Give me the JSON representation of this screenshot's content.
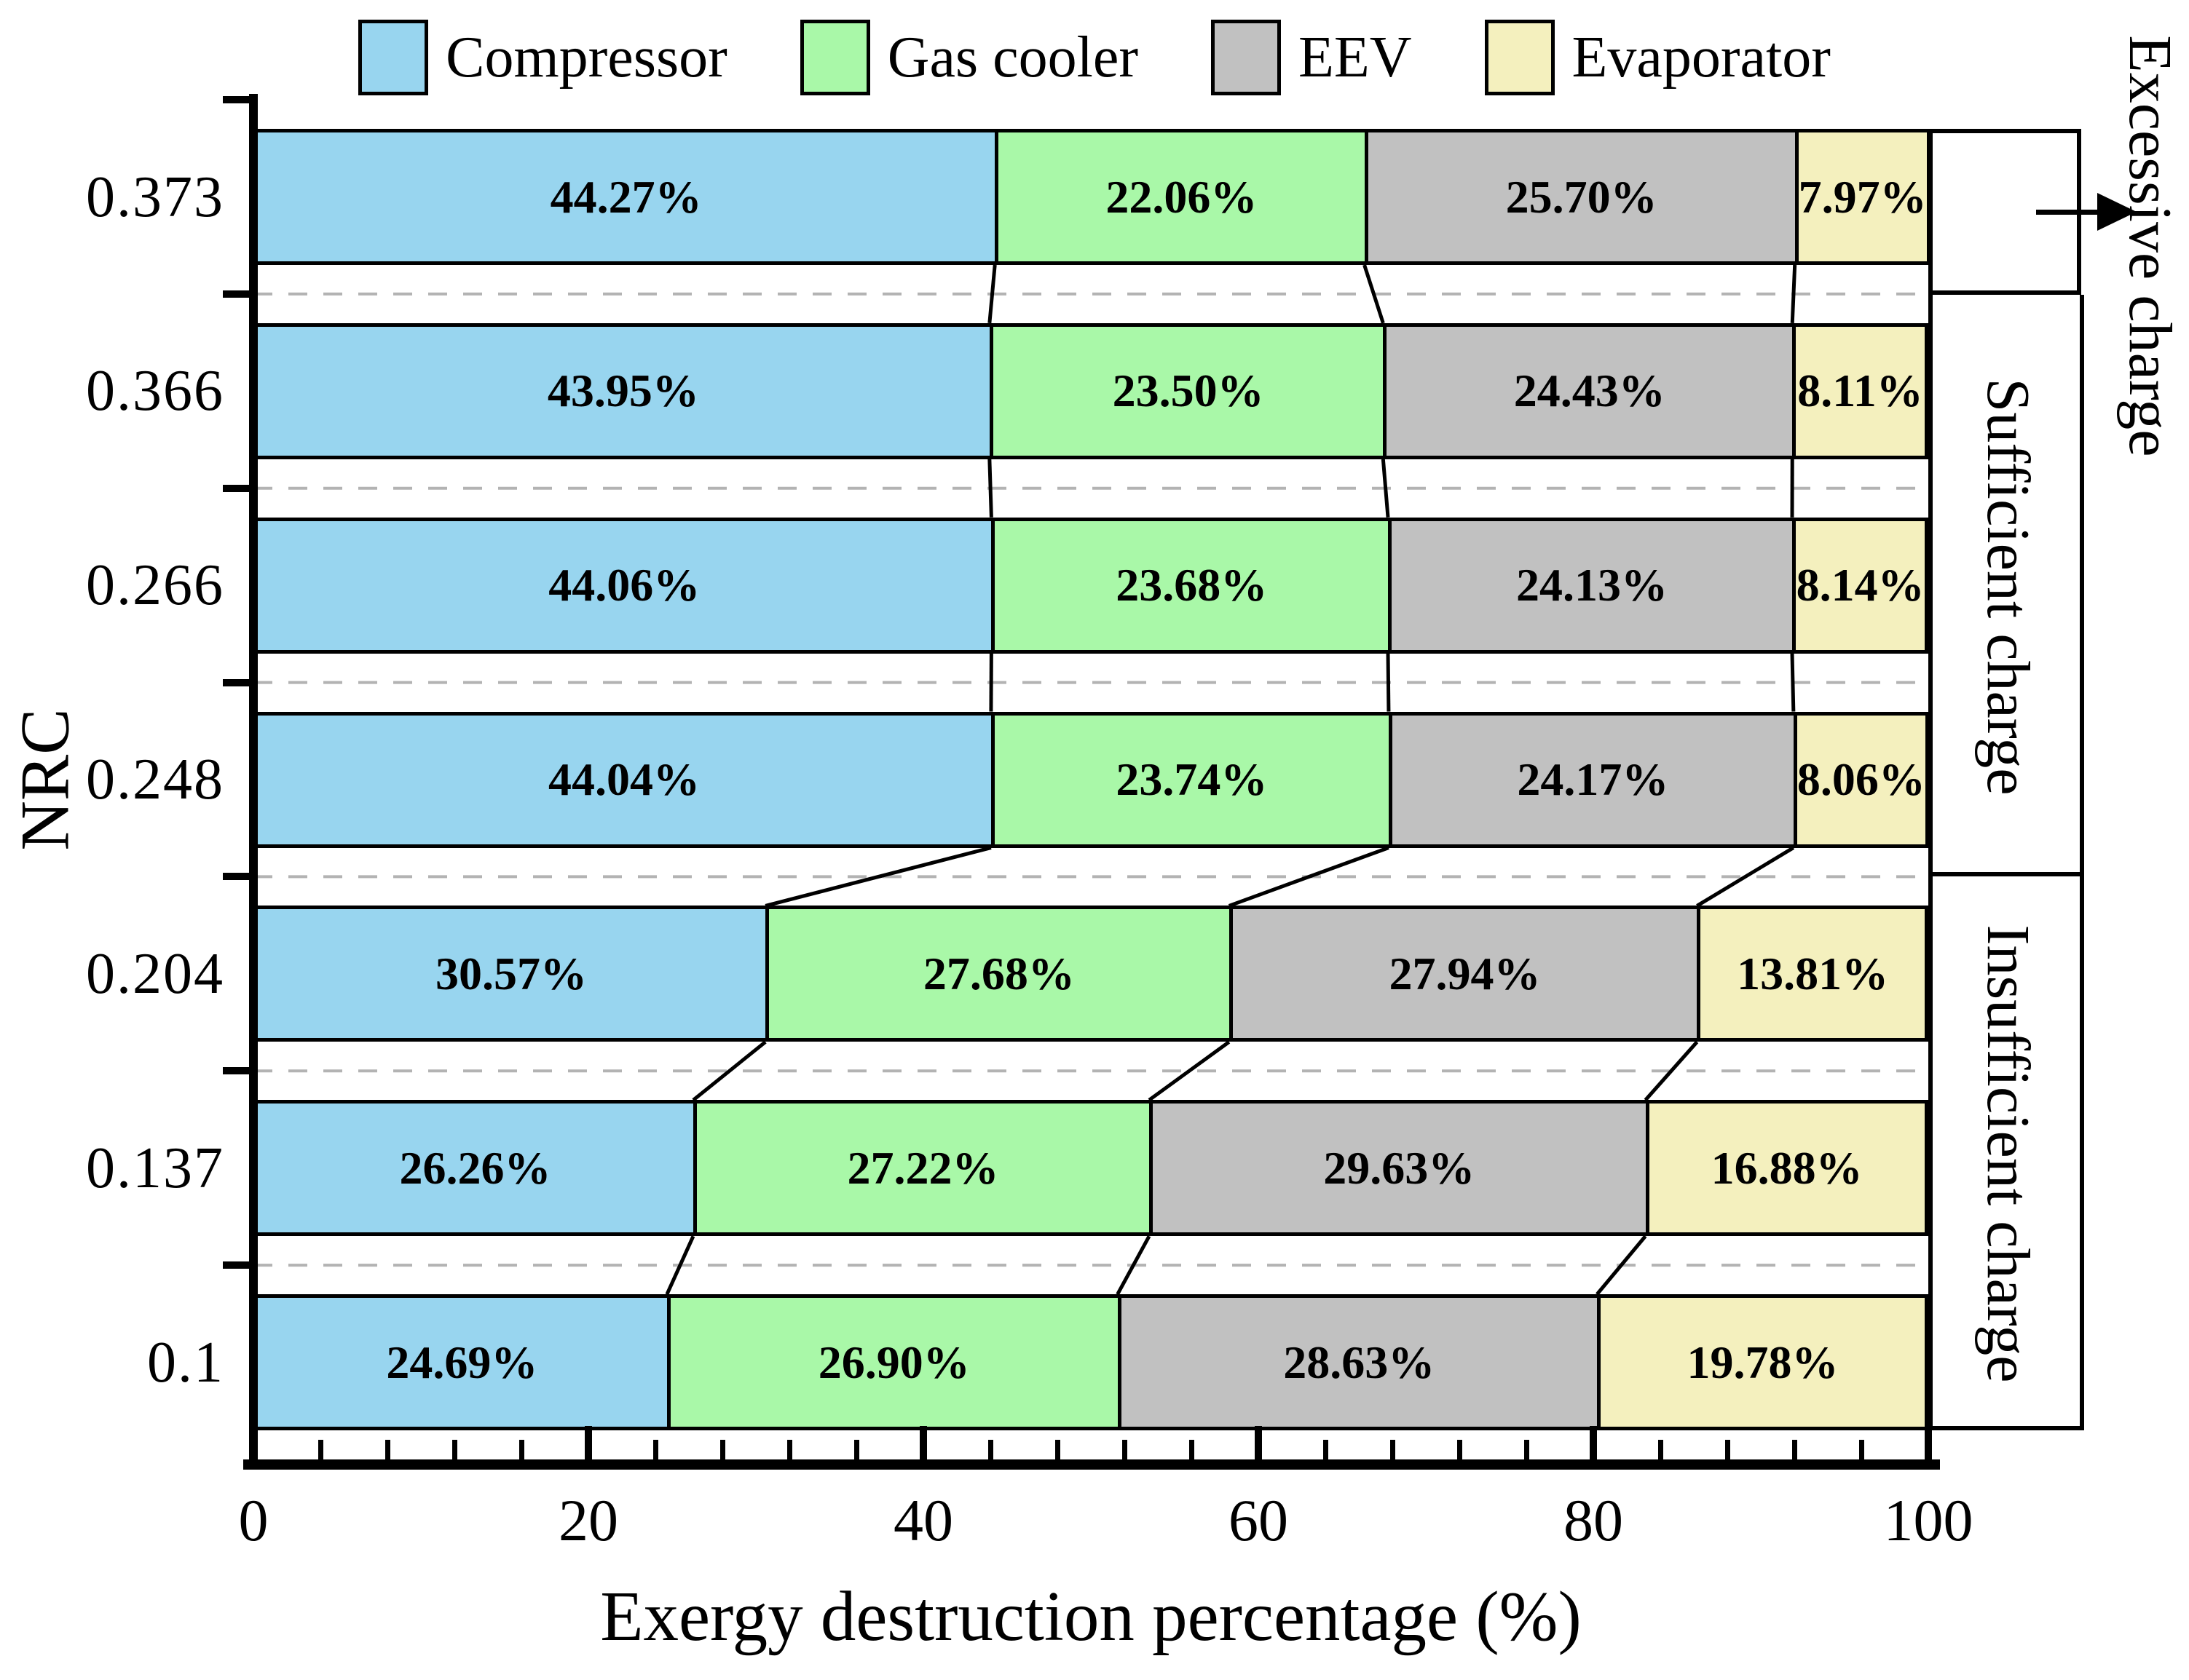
{
  "axes": {
    "x": {
      "label": "Exergy destruction percentage (%)",
      "tick_labels": [
        "0",
        "20",
        "40",
        "60",
        "80",
        "100"
      ],
      "range": [
        0,
        100
      ],
      "minor_tick_step": 4
    },
    "y": {
      "label": "NRC"
    }
  },
  "annotations": {
    "excessive": {
      "label": "Excessive charge"
    },
    "sufficient": {
      "label": "Sufficient charge"
    },
    "insufficient": {
      "label": "Insufficient charge"
    }
  },
  "style": {
    "background": "#FFFFFF",
    "bar_border": "#000000",
    "grid_line": "#B3B3B3",
    "text": "#000000"
  },
  "chart_data": {
    "type": "bar",
    "orientation": "horizontal",
    "stacked": true,
    "title": "",
    "xlabel": "Exergy destruction percentage (%)",
    "ylabel": "NRC",
    "xlim": [
      0,
      100
    ],
    "x_major_ticks": [
      0,
      20,
      40,
      60,
      80,
      100
    ],
    "x_minor_tick_step": 4,
    "grid": "dashed horizontal separator lines between category rows",
    "legend_position": "top",
    "categories": [
      "0.373",
      "0.366",
      "0.266",
      "0.248",
      "0.204",
      "0.137",
      "0.1"
    ],
    "series": [
      {
        "name": "Compressor",
        "color": "#98D5EF",
        "values": [
          44.27,
          43.95,
          44.06,
          44.04,
          30.57,
          26.26,
          24.69
        ],
        "value_labels": [
          "44.27%",
          "43.95%",
          "44.06%",
          "44.04%",
          "30.57%",
          "26.26%",
          "24.69%"
        ]
      },
      {
        "name": "Gas cooler",
        "color": "#A9F8A8",
        "values": [
          22.06,
          23.5,
          23.68,
          23.74,
          27.68,
          27.22,
          26.9
        ],
        "value_labels": [
          "22.06%",
          "23.50%",
          "23.68%",
          "23.74%",
          "27.68%",
          "27.22%",
          "26.90%"
        ]
      },
      {
        "name": "EEV",
        "color": "#C1C1C1",
        "values": [
          25.7,
          24.43,
          24.13,
          24.17,
          27.94,
          29.63,
          28.63
        ],
        "value_labels": [
          "25.70%",
          "24.43%",
          "24.13%",
          "24.17%",
          "27.94%",
          "29.63%",
          "28.63%"
        ]
      },
      {
        "name": "Evaporator",
        "color": "#F4F0BE",
        "values": [
          7.97,
          8.11,
          8.14,
          8.06,
          13.81,
          16.88,
          19.78
        ],
        "value_labels": [
          "7.97%",
          "8.11%",
          "8.14%",
          "8.06%",
          "13.81%",
          "16.88%",
          "19.78%"
        ]
      }
    ],
    "row_groups": [
      {
        "label": "Excessive charge",
        "rows": [
          0
        ]
      },
      {
        "label": "Sufficient charge",
        "rows": [
          1,
          2,
          3
        ]
      },
      {
        "label": "Insufficient charge",
        "rows": [
          4,
          5,
          6
        ]
      }
    ]
  }
}
